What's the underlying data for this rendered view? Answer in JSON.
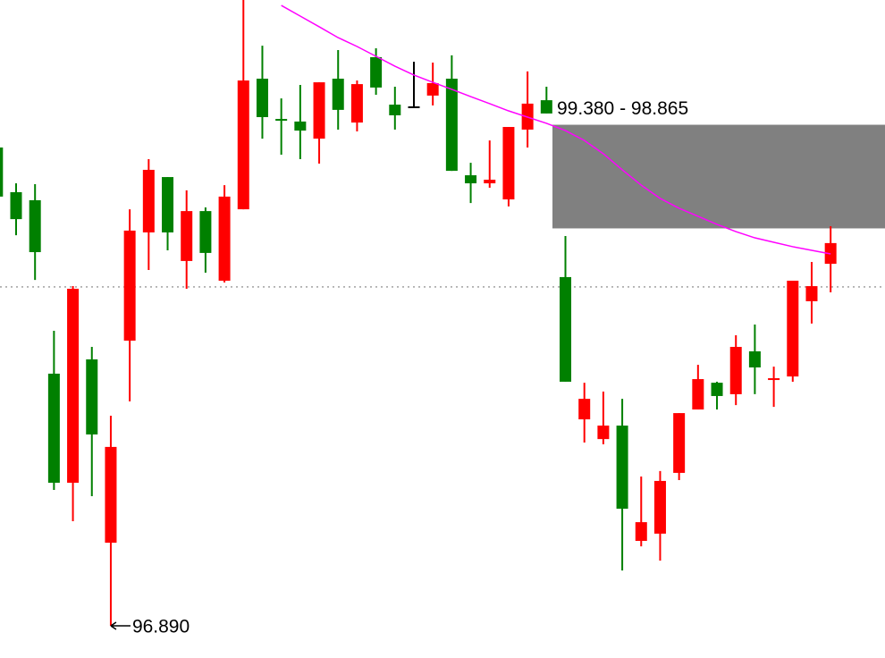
{
  "chart_data": {
    "type": "candlestick",
    "ylim": [
      96.73,
      100.0
    ],
    "up_color": "#008000",
    "down_color": "#ff0000",
    "flat_color": "#000000",
    "open": [
      99.023,
      98.911,
      98.747,
      97.601,
      98.565,
      97.841,
      97.779,
      98.854,
      99.156,
      98.845,
      98.951,
      98.743,
      99.023,
      99.6,
      99.418,
      99.4,
      99.351,
      99.591,
      99.454,
      99.582,
      99.565,
      99.427,
      99.467,
      99.587,
      99.151,
      99.089,
      99.107,
      99.369,
      99.485,
      99.436,
      98.103,
      98.018,
      97.885,
      97.472,
      97.405,
      97.61,
      97.947,
      98.116,
      98.032,
      98.276,
      98.174,
      98.116,
      98.605,
      98.578,
      98.792
    ],
    "high": [
      99.289,
      99.089,
      99.085,
      98.356,
      98.578,
      98.276,
      97.934,
      98.96,
      99.209,
      99.12,
      99.054,
      98.969,
      99.08,
      100.0,
      99.773,
      99.511,
      99.578,
      99.591,
      99.751,
      99.6,
      99.76,
      99.569,
      99.693,
      99.689,
      99.725,
      99.191,
      99.302,
      99.369,
      99.645,
      99.569,
      98.827,
      98.098,
      98.054,
      98.018,
      97.632,
      97.659,
      97.947,
      98.187,
      98.103,
      98.334,
      98.387,
      98.178,
      98.605,
      98.698,
      98.876
    ],
    "low": [
      99.023,
      98.831,
      98.609,
      97.565,
      97.41,
      97.534,
      96.89,
      98.005,
      98.658,
      98.756,
      98.565,
      98.645,
      98.596,
      98.96,
      99.311,
      99.231,
      99.209,
      99.187,
      99.356,
      99.347,
      99.529,
      99.356,
      99.467,
      99.476,
      99.151,
      98.991,
      99.067,
      98.974,
      99.267,
      99.436,
      98.103,
      97.801,
      97.792,
      97.165,
      97.285,
      97.214,
      97.614,
      97.965,
      97.965,
      97.987,
      98.041,
      97.978,
      98.103,
      98.392,
      98.547
    ],
    "close": [
      99.267,
      99.045,
      99.005,
      98.143,
      97.601,
      98.214,
      97.303,
      98.307,
      98.845,
      99.12,
      98.703,
      98.951,
      98.605,
      98.96,
      99.609,
      99.409,
      99.396,
      99.311,
      99.609,
      99.391,
      99.716,
      99.48,
      99.467,
      99.525,
      99.609,
      99.129,
      99.089,
      99.009,
      99.356,
      99.502,
      98.623,
      97.916,
      97.818,
      97.885,
      97.312,
      97.348,
      97.65,
      97.965,
      98.098,
      98.041,
      98.254,
      98.112,
      98.129,
      98.503,
      98.689
    ],
    "moving_average": {
      "color": "#ff00ff",
      "values": [
        null,
        null,
        null,
        null,
        null,
        null,
        null,
        null,
        null,
        null,
        null,
        null,
        null,
        null,
        null,
        99.973,
        99.92,
        99.867,
        99.813,
        99.769,
        99.72,
        99.671,
        99.627,
        99.591,
        99.556,
        99.52,
        99.485,
        99.449,
        99.418,
        99.387,
        99.351,
        99.302,
        99.236,
        99.156,
        99.08,
        99.014,
        98.965,
        98.925,
        98.885,
        98.849,
        98.818,
        98.796,
        98.774,
        98.756,
        98.738
      ]
    },
    "zone": {
      "label": "99.380 - 98.865",
      "from": 99.38,
      "to": 98.865,
      "color": "#808080"
    },
    "level": 98.574,
    "low_label": "96.890"
  }
}
